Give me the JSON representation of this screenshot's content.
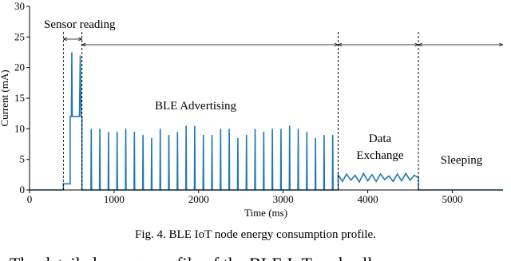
{
  "chart_data": {
    "type": "line",
    "xlabel": "Time (ms)",
    "ylabel": "Current (mA)",
    "caption": "Fig. 4.  BLE IoT node energy consumption profile.",
    "following_text": "The detailed energy profile of the BLE IoT node all",
    "xlim": [
      0,
      5600
    ],
    "ylim": [
      0,
      30
    ],
    "xticks": [
      0,
      1000,
      2000,
      3000,
      4000,
      5000
    ],
    "yticks": [
      0,
      5,
      10,
      15,
      20,
      25,
      30
    ],
    "x": [
      0,
      400,
      400,
      480,
      480,
      495,
      500,
      505,
      590,
      600,
      610,
      620,
      620,
      726,
      730,
      734,
      828,
      832,
      836,
      930,
      934,
      938,
      1032,
      1036,
      1040,
      1134,
      1138,
      1142,
      1236,
      1240,
      1244,
      1338,
      1342,
      1346,
      1440,
      1444,
      1448,
      1542,
      1546,
      1550,
      1644,
      1648,
      1652,
      1746,
      1750,
      1754,
      1848,
      1852,
      1856,
      1950,
      1954,
      1958,
      2052,
      2056,
      2060,
      2154,
      2158,
      2162,
      2256,
      2260,
      2264,
      2358,
      2362,
      2366,
      2460,
      2464,
      2468,
      2562,
      2566,
      2570,
      2664,
      2668,
      2672,
      2766,
      2770,
      2774,
      2868,
      2872,
      2876,
      2970,
      2974,
      2978,
      3072,
      3076,
      3080,
      3174,
      3178,
      3182,
      3276,
      3280,
      3284,
      3378,
      3382,
      3386,
      3480,
      3484,
      3488,
      3582,
      3586,
      3590,
      3650,
      3650,
      3700,
      3750,
      3800,
      3850,
      3900,
      3950,
      4000,
      4050,
      4100,
      4150,
      4200,
      4250,
      4300,
      4350,
      4400,
      4450,
      4500,
      4550,
      4600,
      4600,
      5600
    ],
    "series": [
      {
        "color": "#1f77b4",
        "values": [
          0,
          0,
          1,
          1,
          12,
          12,
          22.5,
          12,
          12,
          22,
          12,
          12,
          0,
          0,
          10,
          0,
          0,
          10,
          0,
          0,
          9.5,
          0,
          0,
          9.5,
          0,
          0,
          10,
          0,
          0,
          9.5,
          0,
          0,
          9,
          0,
          0,
          8.5,
          0,
          0,
          10,
          0,
          0,
          9,
          0,
          0,
          9.5,
          0,
          0,
          10.5,
          0,
          0,
          10.5,
          0,
          0,
          9,
          0,
          0,
          9,
          0,
          0,
          10,
          0,
          0,
          10,
          0,
          0,
          8.5,
          0,
          0,
          9,
          0,
          0,
          10,
          0,
          0,
          9.5,
          0,
          0,
          10,
          0,
          0,
          10,
          0,
          0,
          10.5,
          0,
          0,
          10,
          0,
          0,
          9.5,
          0,
          0,
          8.5,
          0,
          0,
          9,
          0,
          0,
          9,
          0,
          0,
          2.5,
          1.4,
          2.6,
          1.6,
          2.4,
          1.3,
          2.7,
          1.5,
          2.5,
          1.4,
          2.6,
          1.7,
          2.3,
          1.4,
          2.6,
          1.5,
          2.7,
          1.6,
          2.4,
          2,
          0,
          0
        ]
      }
    ],
    "phases": [
      {
        "label": [
          "Sensor reading"
        ],
        "start": 400,
        "end": 620
      },
      {
        "label": [
          "BLE Advertising"
        ],
        "start": 620,
        "end": 3650
      },
      {
        "label": [
          "Data",
          "Exchange"
        ],
        "start": 3650,
        "end": 4600
      },
      {
        "label": [
          "Sleeping"
        ],
        "start": 4600,
        "end": 5600
      }
    ]
  }
}
